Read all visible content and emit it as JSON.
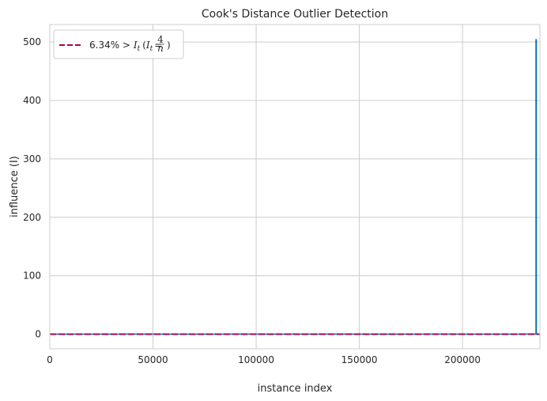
{
  "chart_data": {
    "type": "stem",
    "title": "Cook's Distance Outlier Detection",
    "xlabel": "instance index",
    "ylabel": "influence (I)",
    "xlim": [
      0,
      237500
    ],
    "ylim": [
      -25,
      530
    ],
    "xticks": [
      0,
      50000,
      100000,
      150000,
      200000
    ],
    "xtick_labels": [
      "0",
      "50000",
      "100000",
      "150000",
      "200000"
    ],
    "yticks": [
      0,
      100,
      200,
      300,
      400,
      500
    ],
    "ytick_labels": [
      "0",
      "100",
      "200",
      "300",
      "400",
      "500"
    ],
    "grid": true,
    "legend_placement": "top-left",
    "series": [
      {
        "kind": "stems",
        "color": "#0072b2",
        "points": [
          {
            "x": 235700,
            "y": 505
          }
        ],
        "baseline_y": 0
      },
      {
        "kind": "threshold",
        "name": "6.34% > I_t (I_t = 4/n)",
        "legend_main": "6.34% > ",
        "legend_sym": "I",
        "legend_sub": "t",
        "legend_paren_sym": "I",
        "legend_paren_sub": "t",
        "legend_num": "4",
        "legend_den": "n",
        "color": "#b0004a",
        "style": "dashed",
        "y": 1.7e-05
      }
    ]
  }
}
